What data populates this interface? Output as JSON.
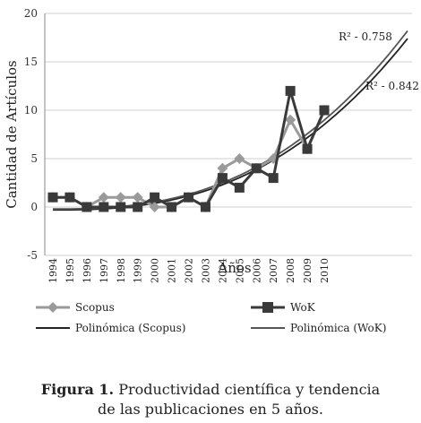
{
  "chart_data": {
    "type": "line",
    "x": [
      "1994",
      "1995",
      "1996",
      "1997",
      "1998",
      "1999",
      "2000",
      "2001",
      "2002",
      "2003",
      "2004",
      "2005",
      "2006",
      "2007",
      "2008",
      "2009",
      "2010"
    ],
    "ylabel": "Cantidad de Artículos",
    "xlabel": "Años",
    "ylim": [
      -5,
      20
    ],
    "yticks": [
      "-5",
      "0",
      "5",
      "10",
      "15",
      "20"
    ],
    "grid": "horizontal",
    "legend_position": "bottom",
    "series": [
      {
        "name": "Scopus",
        "color": "#9a9a9a",
        "marker": "diamond",
        "values": [
          1,
          1,
          0,
          1,
          1,
          1,
          0,
          0,
          1,
          0,
          4,
          5,
          4,
          5,
          9,
          6,
          10
        ]
      },
      {
        "name": "WoK",
        "color": "#3a3a3a",
        "marker": "square",
        "values": [
          1,
          1,
          0,
          0,
          0,
          0,
          1,
          0,
          1,
          0,
          3,
          2,
          4,
          3,
          12,
          6,
          10
        ]
      }
    ],
    "trendlines": [
      {
        "name": "Polinómica (Scopus)",
        "color": "#222222",
        "r2_label": "R² - 0.842",
        "fit": [
          -0.3,
          17.4
        ]
      },
      {
        "name": "Polinómica (WoK)",
        "color": "#555555",
        "r2_label": "R² - 0.758",
        "fit": [
          -0.2,
          18.2
        ]
      }
    ]
  },
  "caption": {
    "label": "Figura 1.",
    "line1": " Productividad científica y tendencia",
    "line2": "de las publicaciones en 5 años."
  }
}
